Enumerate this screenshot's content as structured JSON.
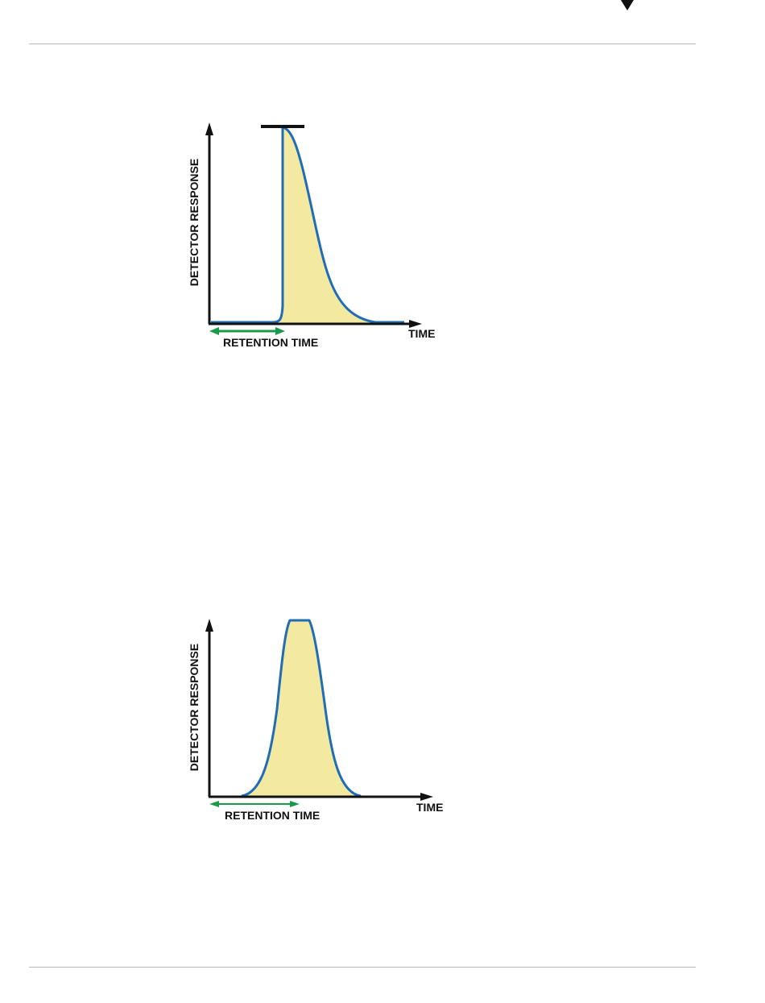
{
  "figures": [
    {
      "y_axis_label": "DETECTOR RESPONSE",
      "x_axis_label": "TIME",
      "retention_label": "RETENTION TIME",
      "colors": {
        "fill": "#f3e9a1",
        "stroke": "#1f6db6",
        "arrow": "#1a9b4a",
        "axis": "#111111"
      }
    },
    {
      "y_axis_label": "DETECTOR RESPONSE",
      "x_axis_label": "TIME",
      "retention_label": "RETENTION TIME",
      "colors": {
        "fill": "#f3e9a1",
        "stroke": "#1f6db6",
        "arrow": "#1a9b4a",
        "axis": "#111111"
      }
    }
  ]
}
